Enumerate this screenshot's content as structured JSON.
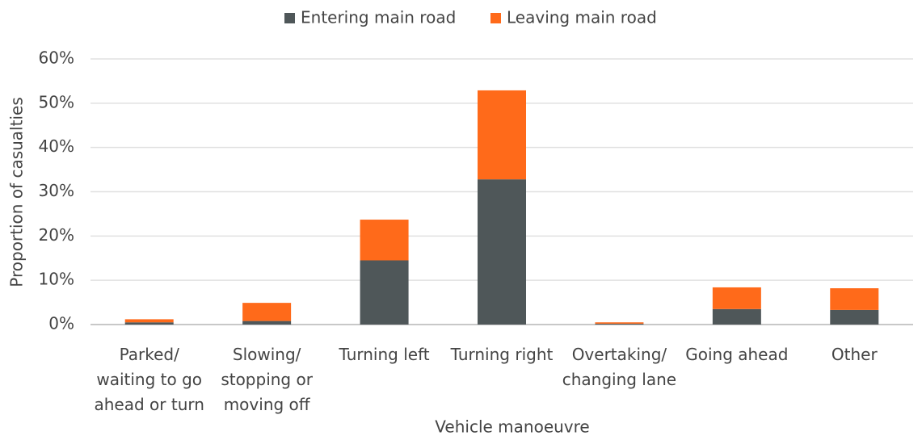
{
  "chart_data": {
    "type": "stacked_bar",
    "categories": [
      "Parked/ waiting to go ahead or turn",
      "Slowing/ stopping or moving off",
      "Turning left",
      "Turning right",
      "Overtaking/ changing lane",
      "Going ahead",
      "Other"
    ],
    "series": [
      {
        "name": "Entering main road",
        "color": "#4f5759",
        "values": [
          0.5,
          0.8,
          14.5,
          32.8,
          0.2,
          3.5,
          3.3
        ]
      },
      {
        "name": "Leaving main road",
        "color": "#ff6a1a",
        "values": [
          0.7,
          4.1,
          9.2,
          20.1,
          0.3,
          4.9,
          4.9
        ]
      }
    ],
    "ylim": [
      0,
      60
    ],
    "yticks": [
      {
        "value": 0,
        "label": "0%"
      },
      {
        "value": 10,
        "label": "10%"
      },
      {
        "value": 20,
        "label": "20%"
      },
      {
        "value": 30,
        "label": "30%"
      },
      {
        "value": 40,
        "label": "40%"
      },
      {
        "value": 50,
        "label": "50%"
      },
      {
        "value": 60,
        "label": "60%"
      }
    ],
    "ylabel": "Proportion of casualties",
    "xlabel": "Vehicle manoeuvre",
    "grid": true,
    "legend": "top"
  }
}
